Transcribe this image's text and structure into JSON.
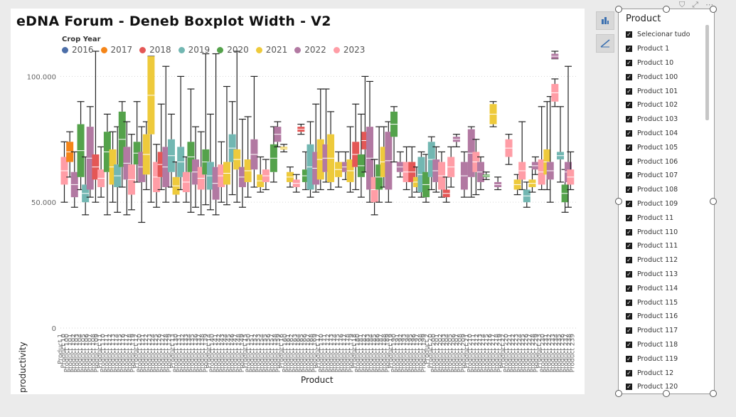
{
  "title": "eDNA Forum - Deneb Boxplot Width - V2",
  "legend": {
    "title": "Crop Year",
    "items": [
      {
        "label": "2016",
        "color": "#4c6ea8"
      },
      {
        "label": "2017",
        "color": "#f58518"
      },
      {
        "label": "2018",
        "color": "#e45756"
      },
      {
        "label": "2019",
        "color": "#72b7b2"
      },
      {
        "label": "2020",
        "color": "#54a24b"
      },
      {
        "label": "2021",
        "color": "#eeca3b"
      },
      {
        "label": "2022",
        "color": "#b279a2"
      },
      {
        "label": "2023",
        "color": "#ff9da6"
      }
    ]
  },
  "chart_data": {
    "type": "boxplot",
    "title": "eDNA Forum - Deneb Boxplot Width - V2",
    "xlabel": "Product",
    "ylabel": "productivity",
    "ylim": [
      0,
      110000
    ],
    "yticks": [
      0,
      50000,
      100000
    ],
    "ytick_labels": [
      "0",
      "50.000",
      "100.000"
    ],
    "grid": "horizontal dotted",
    "legend_position": "top-left",
    "xtick_labels": [
      "Product 1",
      "Product 10",
      "Product 100",
      "Product 101",
      "Product 102",
      "Product 103",
      "Product 104",
      "Product 105",
      "Product 106",
      "Product 107",
      "Product 108",
      "Product 109",
      "Product 11",
      "Product 110",
      "Product 111",
      "Product 112",
      "Product 113",
      "Product 114",
      "Product 115",
      "Product 116",
      "Product 117",
      "Product 118",
      "Product 119",
      "Product 12",
      "Product 120",
      "Product 121",
      "Product 122",
      "Product 123",
      "Product 124",
      "Product 125",
      "Product 126",
      "Product 127",
      "Product 128",
      "Product 129",
      "Product 13",
      "Product 130",
      "Product 131",
      "Product 132",
      "Product 133",
      "Product 134",
      "Product 135",
      "Product 136",
      "Product 137",
      "Product 138",
      "Product 139",
      "Product 14",
      "Product 140",
      "Product 141",
      "Product 142",
      "Product 143",
      "Product 144",
      "Product 145",
      "Product 146",
      "Product 147",
      "Product 148",
      "Product 149",
      "Product 15",
      "Product 150",
      "Product 151",
      "Product 152",
      "Product 153",
      "Product 154",
      "Product 155",
      "Product 156",
      "Product 157",
      "Product 158",
      "Product 159",
      "Product 16",
      "Product 160",
      "Product 161",
      "Product 162",
      "Product 163",
      "Product 164",
      "Product 165",
      "Product 166",
      "Product 167",
      "Product 168",
      "Product 169",
      "Product 17",
      "Product 170",
      "Product 171",
      "Product 172",
      "Product 173",
      "Product 174",
      "Product 175",
      "Product 176",
      "Product 177",
      "Product 178",
      "Product 179",
      "Product 18",
      "Product 180",
      "Product 181",
      "Product 182",
      "Product 183",
      "Product 184",
      "Product 185",
      "Product 186",
      "Product 187",
      "Product 188",
      "Product 189",
      "Product 19",
      "Product 190",
      "Product 191",
      "Product 192",
      "Product 193",
      "Product 194",
      "Product 195",
      "Product 196",
      "Product 197",
      "Product 198",
      "Product 199",
      "Product 2",
      "Product 20",
      "Product 200",
      "Product 201",
      "Product 202",
      "Product 203",
      "Product 204",
      "Product 205",
      "Product 206",
      "Product 207",
      "Product 208",
      "Product 209",
      "Product 21",
      "Product 210",
      "Product 211",
      "Product 212",
      "Product 213",
      "Product 214",
      "Product 215",
      "Product 216",
      "Product 217",
      "Product 218",
      "Product 219",
      "Product 22",
      "Product 220",
      "Product 221",
      "Product 222",
      "Product 223",
      "Product 224",
      "Product 225",
      "Product 226",
      "Product 227",
      "Product 228",
      "Product 229",
      "Product 23",
      "Product 230",
      "Product 231",
      "Product 232",
      "Product 233",
      "Product 234",
      "Product 235",
      "Product 236",
      "Product 237",
      "Product 238",
      "Product 239"
    ],
    "boxes": [
      {
        "x": 0.5,
        "year": "2023",
        "q1": 57000,
        "q3": 68000,
        "lo": 50000,
        "hi": 74000
      },
      {
        "x": 1.2,
        "year": "2017",
        "q1": 66000,
        "q3": 74000,
        "lo": 60000,
        "hi": 78000
      },
      {
        "x": 1.8,
        "year": "2022",
        "q1": 52000,
        "q3": 62000,
        "lo": 48000,
        "hi": 70000
      },
      {
        "x": 2.6,
        "year": "2020",
        "q1": 60000,
        "q3": 81000,
        "lo": 55000,
        "hi": 90000
      },
      {
        "x": 3.2,
        "year": "2019",
        "q1": 50000,
        "q3": 57000,
        "lo": 45000,
        "hi": 68000
      },
      {
        "x": 3.8,
        "year": "2022",
        "q1": 55000,
        "q3": 80000,
        "lo": 52000,
        "hi": 88000
      },
      {
        "x": 4.5,
        "year": "2018",
        "q1": 59000,
        "q3": 69000,
        "lo": 50000,
        "hi": 110000
      },
      {
        "x": 5.2,
        "year": "2023",
        "q1": 56000,
        "q3": 63000,
        "lo": 52000,
        "hi": 72000
      },
      {
        "x": 6.0,
        "year": "2020",
        "q1": 62000,
        "q3": 78000,
        "lo": 45000,
        "hi": 85000
      },
      {
        "x": 6.7,
        "year": "2021",
        "q1": 57000,
        "q3": 71000,
        "lo": 50000,
        "hi": 78000
      },
      {
        "x": 7.3,
        "year": "2019",
        "q1": 56000,
        "q3": 65000,
        "lo": 46000,
        "hi": 80000
      },
      {
        "x": 7.9,
        "year": "2020",
        "q1": 64000,
        "q3": 86000,
        "lo": 56000,
        "hi": 90000
      },
      {
        "x": 8.5,
        "year": "2022",
        "q1": 59000,
        "q3": 72000,
        "lo": 45000,
        "hi": 82000
      },
      {
        "x": 9.1,
        "year": "2023",
        "q1": 53000,
        "q3": 65000,
        "lo": 47000,
        "hi": 77000
      },
      {
        "x": 9.8,
        "year": "2020",
        "q1": 65000,
        "q3": 74000,
        "lo": 58000,
        "hi": 90000
      },
      {
        "x": 10.4,
        "year": "2022",
        "q1": 58000,
        "q3": 70000,
        "lo": 42000,
        "hi": 80000
      },
      {
        "x": 11.0,
        "year": "2021",
        "q1": 61000,
        "q3": 77000,
        "lo": 55000,
        "hi": 82000
      },
      {
        "x": 11.6,
        "year": "2021",
        "q1": 77000,
        "q3": 108000,
        "lo": 50000,
        "hi": 108000
      },
      {
        "x": 12.3,
        "year": "2023",
        "q1": 54000,
        "q3": 66000,
        "lo": 48000,
        "hi": 73000
      },
      {
        "x": 12.9,
        "year": "2018",
        "q1": 60000,
        "q3": 70000,
        "lo": 55000,
        "hi": 89000
      },
      {
        "x": 13.5,
        "year": "2022",
        "q1": 56000,
        "q3": 72000,
        "lo": 50000,
        "hi": 104000
      },
      {
        "x": 14.2,
        "year": "2019",
        "q1": 62000,
        "q3": 75000,
        "lo": 56000,
        "hi": 85000
      },
      {
        "x": 14.8,
        "year": "2021",
        "q1": 53000,
        "q3": 60000,
        "lo": 50000,
        "hi": 66000
      },
      {
        "x": 15.4,
        "year": "2019",
        "q1": 60000,
        "q3": 72000,
        "lo": 55000,
        "hi": 100000
      },
      {
        "x": 16.1,
        "year": "2023",
        "q1": 54000,
        "q3": 62000,
        "lo": 50000,
        "hi": 68000
      },
      {
        "x": 16.7,
        "year": "2020",
        "q1": 62000,
        "q3": 74000,
        "lo": 46000,
        "hi": 95000
      },
      {
        "x": 17.3,
        "year": "2022",
        "q1": 57000,
        "q3": 67000,
        "lo": 48000,
        "hi": 80000
      },
      {
        "x": 18.0,
        "year": "2023",
        "q1": 55000,
        "q3": 64000,
        "lo": 45000,
        "hi": 78000
      },
      {
        "x": 18.6,
        "year": "2020",
        "q1": 61000,
        "q3": 71000,
        "lo": 49000,
        "hi": 109000
      },
      {
        "x": 19.2,
        "year": "2019",
        "q1": 55000,
        "q3": 66000,
        "lo": 47000,
        "hi": 85000
      },
      {
        "x": 19.9,
        "year": "2022",
        "q1": 51000,
        "q3": 64000,
        "lo": 45000,
        "hi": 109000
      },
      {
        "x": 20.6,
        "year": "2023",
        "q1": 56000,
        "q3": 65000,
        "lo": 50000,
        "hi": 74000
      },
      {
        "x": 21.3,
        "year": "2021",
        "q1": 57000,
        "q3": 66000,
        "lo": 49000,
        "hi": 96000
      },
      {
        "x": 22.0,
        "year": "2019",
        "q1": 66000,
        "q3": 77000,
        "lo": 53000,
        "hi": 90000
      },
      {
        "x": 22.6,
        "year": "2021",
        "q1": 63000,
        "q3": 71000,
        "lo": 50000,
        "hi": 110000
      },
      {
        "x": 23.3,
        "year": "2022",
        "q1": 56000,
        "q3": 64000,
        "lo": 48000,
        "hi": 83000
      },
      {
        "x": 24.0,
        "year": "2021",
        "q1": 58000,
        "q3": 67000,
        "lo": 52000,
        "hi": 84000
      },
      {
        "x": 24.8,
        "year": "2022",
        "q1": 63000,
        "q3": 75000,
        "lo": 56000,
        "hi": 100000
      },
      {
        "x": 25.6,
        "year": "2021",
        "q1": 56000,
        "q3": 61000,
        "lo": 54000,
        "hi": 68000
      },
      {
        "x": 26.3,
        "year": "2023",
        "q1": 58000,
        "q3": 63000,
        "lo": 55000,
        "hi": 67000
      },
      {
        "x": 27.3,
        "year": "2020",
        "q1": 62000,
        "q3": 73000,
        "lo": 58000,
        "hi": 80000
      },
      {
        "x": 27.8,
        "year": "2022",
        "q1": 74000,
        "q3": 80000,
        "lo": 72000,
        "hi": 82000
      },
      {
        "x": 28.6,
        "year": "2021",
        "q1": 71000,
        "q3": 72000,
        "lo": 70000,
        "hi": 73000
      },
      {
        "x": 29.4,
        "year": "2021",
        "q1": 58000,
        "q3": 62000,
        "lo": 56000,
        "hi": 64000
      },
      {
        "x": 30.2,
        "year": "2023",
        "q1": 56000,
        "q3": 59000,
        "lo": 54000,
        "hi": 61000
      },
      {
        "x": 30.8,
        "year": "2018",
        "q1": 78000,
        "q3": 80000,
        "lo": 77000,
        "hi": 81000
      },
      {
        "x": 31.4,
        "year": "2020",
        "q1": 58000,
        "q3": 63000,
        "lo": 55000,
        "hi": 70000
      },
      {
        "x": 32.0,
        "year": "2019",
        "q1": 55000,
        "q3": 73000,
        "lo": 52000,
        "hi": 82000
      },
      {
        "x": 32.7,
        "year": "2022",
        "q1": 57000,
        "q3": 70000,
        "lo": 54000,
        "hi": 89000
      },
      {
        "x": 33.3,
        "year": "2021",
        "q1": 59000,
        "q3": 75000,
        "lo": 55000,
        "hi": 95000
      },
      {
        "x": 34.0,
        "year": "2022",
        "q1": 62000,
        "q3": 73000,
        "lo": 58000,
        "hi": 95000
      },
      {
        "x": 34.6,
        "year": "2021",
        "q1": 58000,
        "q3": 77000,
        "lo": 55000,
        "hi": 86000
      },
      {
        "x": 35.6,
        "year": "2021",
        "q1": 60000,
        "q3": 66000,
        "lo": 56000,
        "hi": 70000
      },
      {
        "x": 36.5,
        "year": "2022",
        "q1": 62000,
        "q3": 66000,
        "lo": 59000,
        "hi": 70000
      },
      {
        "x": 37.1,
        "year": "2021",
        "q1": 58000,
        "q3": 67000,
        "lo": 54000,
        "hi": 80000
      },
      {
        "x": 37.8,
        "year": "2018",
        "q1": 64000,
        "q3": 74000,
        "lo": 55000,
        "hi": 89000
      },
      {
        "x": 38.5,
        "year": "2020",
        "q1": 60000,
        "q3": 69000,
        "lo": 52000,
        "hi": 85000
      },
      {
        "x": 39.0,
        "year": "2018",
        "q1": 71000,
        "q3": 78000,
        "lo": 62000,
        "hi": 100000
      },
      {
        "x": 39.6,
        "year": "2022",
        "q1": 55000,
        "q3": 80000,
        "lo": 50000,
        "hi": 98000
      },
      {
        "x": 40.2,
        "year": "2023",
        "q1": 50000,
        "q3": 60000,
        "lo": 45000,
        "hi": 67000
      },
      {
        "x": 40.8,
        "year": "2020",
        "q1": 55000,
        "q3": 65000,
        "lo": 50000,
        "hi": 80000
      },
      {
        "x": 41.4,
        "year": "2021",
        "q1": 60000,
        "q3": 72000,
        "lo": 56000,
        "hi": 80000
      },
      {
        "x": 42.0,
        "year": "2022",
        "q1": 55000,
        "q3": 78000,
        "lo": 50000,
        "hi": 82000
      },
      {
        "x": 42.7,
        "year": "2020",
        "q1": 76000,
        "q3": 86000,
        "lo": 66000,
        "hi": 88000
      },
      {
        "x": 43.5,
        "year": "2022",
        "q1": 62000,
        "q3": 66000,
        "lo": 60000,
        "hi": 70000
      },
      {
        "x": 44.3,
        "year": "2023",
        "q1": 58000,
        "q3": 66000,
        "lo": 55000,
        "hi": 72000
      },
      {
        "x": 45.0,
        "year": "2018",
        "q1": 58000,
        "q3": 66000,
        "lo": 52000,
        "hi": 72000
      },
      {
        "x": 45.6,
        "year": "2021",
        "q1": 56000,
        "q3": 60000,
        "lo": 54000,
        "hi": 64000
      },
      {
        "x": 46.2,
        "year": "2019",
        "q1": 54000,
        "q3": 68000,
        "lo": 52000,
        "hi": 70000
      },
      {
        "x": 46.8,
        "year": "2020",
        "q1": 52000,
        "q3": 62000,
        "lo": 50000,
        "hi": 69000
      },
      {
        "x": 47.5,
        "year": "2019",
        "q1": 60000,
        "q3": 74000,
        "lo": 55000,
        "hi": 76000
      },
      {
        "x": 48.1,
        "year": "2022",
        "q1": 58000,
        "q3": 67000,
        "lo": 54000,
        "hi": 72000
      },
      {
        "x": 48.8,
        "year": "2023",
        "q1": 55000,
        "q3": 66000,
        "lo": 52000,
        "hi": 70000
      },
      {
        "x": 49.4,
        "year": "2018",
        "q1": 52000,
        "q3": 55000,
        "lo": 50000,
        "hi": 60000
      },
      {
        "x": 50.0,
        "year": "2023",
        "q1": 60000,
        "q3": 68000,
        "lo": 56000,
        "hi": 72000
      },
      {
        "x": 50.7,
        "year": "2022",
        "q1": 74000,
        "q3": 76000,
        "lo": 72000,
        "hi": 77000
      },
      {
        "x": 51.7,
        "year": "2022",
        "q1": 55000,
        "q3": 66000,
        "lo": 52000,
        "hi": 70000
      },
      {
        "x": 52.6,
        "year": "2022",
        "q1": 60000,
        "q3": 79000,
        "lo": 52000,
        "hi": 80000
      },
      {
        "x": 53.2,
        "year": "2023",
        "q1": 62000,
        "q3": 70000,
        "lo": 53000,
        "hi": 75000
      },
      {
        "x": 53.8,
        "year": "2022",
        "q1": 58000,
        "q3": 66000,
        "lo": 55000,
        "hi": 68000
      },
      {
        "x": 54.5,
        "year": "2020",
        "q1": 60000,
        "q3": 61000,
        "lo": 59000,
        "hi": 62000
      },
      {
        "x": 55.4,
        "year": "2021",
        "q1": 81000,
        "q3": 89000,
        "lo": 80000,
        "hi": 90000
      },
      {
        "x": 56.0,
        "year": "2022",
        "q1": 56000,
        "q3": 58000,
        "lo": 55000,
        "hi": 60000
      },
      {
        "x": 57.4,
        "year": "2023",
        "q1": 68000,
        "q3": 75000,
        "lo": 65000,
        "hi": 77000
      },
      {
        "x": 58.5,
        "year": "2021",
        "q1": 55000,
        "q3": 59000,
        "lo": 53000,
        "hi": 61000
      },
      {
        "x": 59.1,
        "year": "2023",
        "q1": 59000,
        "q3": 66000,
        "lo": 55000,
        "hi": 82000
      },
      {
        "x": 59.7,
        "year": "2019",
        "q1": 50000,
        "q3": 55000,
        "lo": 48000,
        "hi": 58000
      },
      {
        "x": 60.4,
        "year": "2021",
        "q1": 56000,
        "q3": 59000,
        "lo": 54000,
        "hi": 64000
      },
      {
        "x": 60.8,
        "year": "2022",
        "q1": 63000,
        "q3": 66000,
        "lo": 61000,
        "hi": 68000
      },
      {
        "x": 61.6,
        "year": "2023",
        "q1": 57000,
        "q3": 67000,
        "lo": 55000,
        "hi": 88000
      },
      {
        "x": 62.3,
        "year": "2021",
        "q1": 61000,
        "q3": 71000,
        "lo": 55000,
        "hi": 90000
      },
      {
        "x": 62.7,
        "year": "2022",
        "q1": 59000,
        "q3": 66000,
        "lo": 50000,
        "hi": 92000
      },
      {
        "x": 63.3,
        "year": "2023",
        "q1": 90000,
        "q3": 97000,
        "lo": 88000,
        "hi": 99000
      },
      {
        "x": 63.3,
        "year": "2022",
        "q1": 107000,
        "q3": 109000,
        "lo": 107000,
        "hi": 110000
      },
      {
        "x": 64.0,
        "year": "2019",
        "q1": 67000,
        "q3": 70000,
        "lo": 58000,
        "hi": 88000
      },
      {
        "x": 64.6,
        "year": "2020",
        "q1": 50000,
        "q3": 57000,
        "lo": 46000,
        "hi": 63000
      },
      {
        "x": 65.0,
        "year": "2022",
        "q1": 58000,
        "q3": 66000,
        "lo": 48000,
        "hi": 104000
      },
      {
        "x": 65.3,
        "year": "2023",
        "q1": 57000,
        "q3": 63000,
        "lo": 55000,
        "hi": 70000
      }
    ]
  },
  "slicer": {
    "title": "Product",
    "items": [
      "Selecionar tudo",
      "Product 1",
      "Product 10",
      "Product 100",
      "Product 101",
      "Product 102",
      "Product 103",
      "Product 104",
      "Product 105",
      "Product 106",
      "Product 107",
      "Product 108",
      "Product 109",
      "Product 11",
      "Product 110",
      "Product 111",
      "Product 112",
      "Product 113",
      "Product 114",
      "Product 115",
      "Product 116",
      "Product 117",
      "Product 118",
      "Product 119",
      "Product 12",
      "Product 120"
    ]
  }
}
